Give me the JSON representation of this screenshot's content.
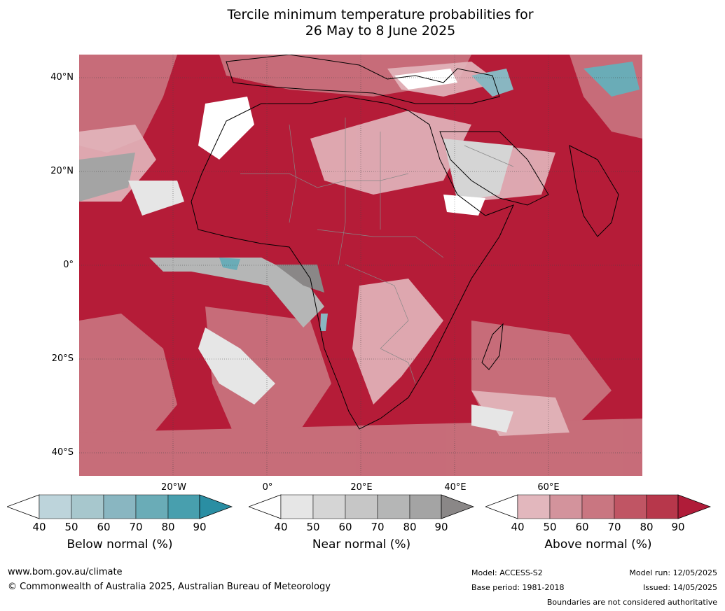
{
  "title": {
    "line1": "Tercile minimum temperature probabilities for",
    "line2": "26 May to 8 June 2025"
  },
  "map": {
    "latitude_labels": [
      "40°N",
      "20°N",
      "0°",
      "20°S",
      "40°S"
    ],
    "longitude_labels": [
      "20°W",
      "0°",
      "20°E",
      "40°E",
      "60°E"
    ],
    "colors": {
      "ocean_hot": "#b51c38",
      "land_outline": "#000000",
      "borders": "#888888"
    }
  },
  "colorbars": [
    {
      "title": "Below normal (%)",
      "ticks": [
        "40",
        "50",
        "60",
        "70",
        "80",
        "90"
      ],
      "colors": [
        "#ffffff",
        "#bdd4db",
        "#a7c7cd",
        "#89b6c1",
        "#6aacb7",
        "#489fae",
        "#2a8ea3"
      ]
    },
    {
      "title": "Near normal (%)",
      "ticks": [
        "40",
        "50",
        "60",
        "70",
        "80",
        "90"
      ],
      "colors": [
        "#ffffff",
        "#e6e6e6",
        "#d5d5d5",
        "#c6c6c6",
        "#b5b6b6",
        "#a4a4a4",
        "#8a8787"
      ]
    },
    {
      "title": "Above normal (%)",
      "ticks": [
        "40",
        "50",
        "60",
        "70",
        "80",
        "90"
      ],
      "colors": [
        "#ffffff",
        "#e2b7bd",
        "#d3939c",
        "#c97681",
        "#c05564",
        "#b7374b",
        "#b01c39"
      ]
    }
  ],
  "footer": {
    "website": "www.bom.gov.au/climate",
    "copyright": "© Commonwealth of Australia 2025, Australian Bureau of Meteorology",
    "model": "Model: ACCESS-S2",
    "base_period": "Base period: 1981-2018",
    "model_run": "Model run: 12/05/2025",
    "issued": "Issued: 14/05/2025",
    "disclaimer": "Boundaries are not considered authoritative"
  }
}
